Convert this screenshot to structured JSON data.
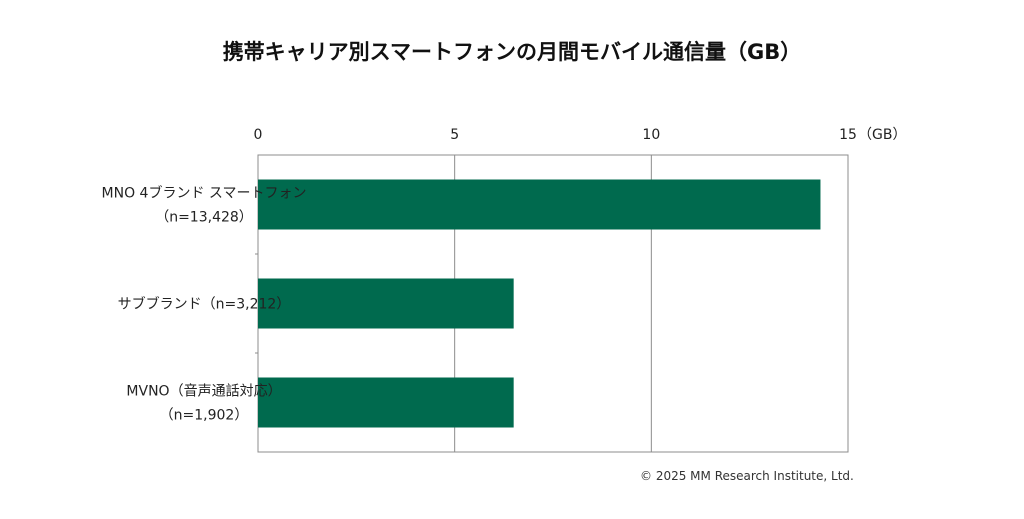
{
  "chart_data": {
    "type": "bar",
    "orientation": "horizontal",
    "title": "携帯キャリア別スマートフォンの月間モバイル通信量（GB）",
    "unit_label": "（GB）",
    "xlim": [
      0,
      15
    ],
    "ticks": [
      0,
      5,
      10,
      15
    ],
    "grid": true,
    "axis_position": "top",
    "categories": [
      [
        "MNO 4ブランド スマートフォン",
        "（n=13,428）"
      ],
      [
        "サブブランド（n=3,212）"
      ],
      [
        "MVNO（音声通話対応）",
        "（n=1,902）"
      ]
    ],
    "values": [
      14.3,
      6.5,
      6.5
    ],
    "bar_color": "#006a4e"
  },
  "footer": {
    "copyright": "© 2025 MM Research Institute, Ltd."
  }
}
